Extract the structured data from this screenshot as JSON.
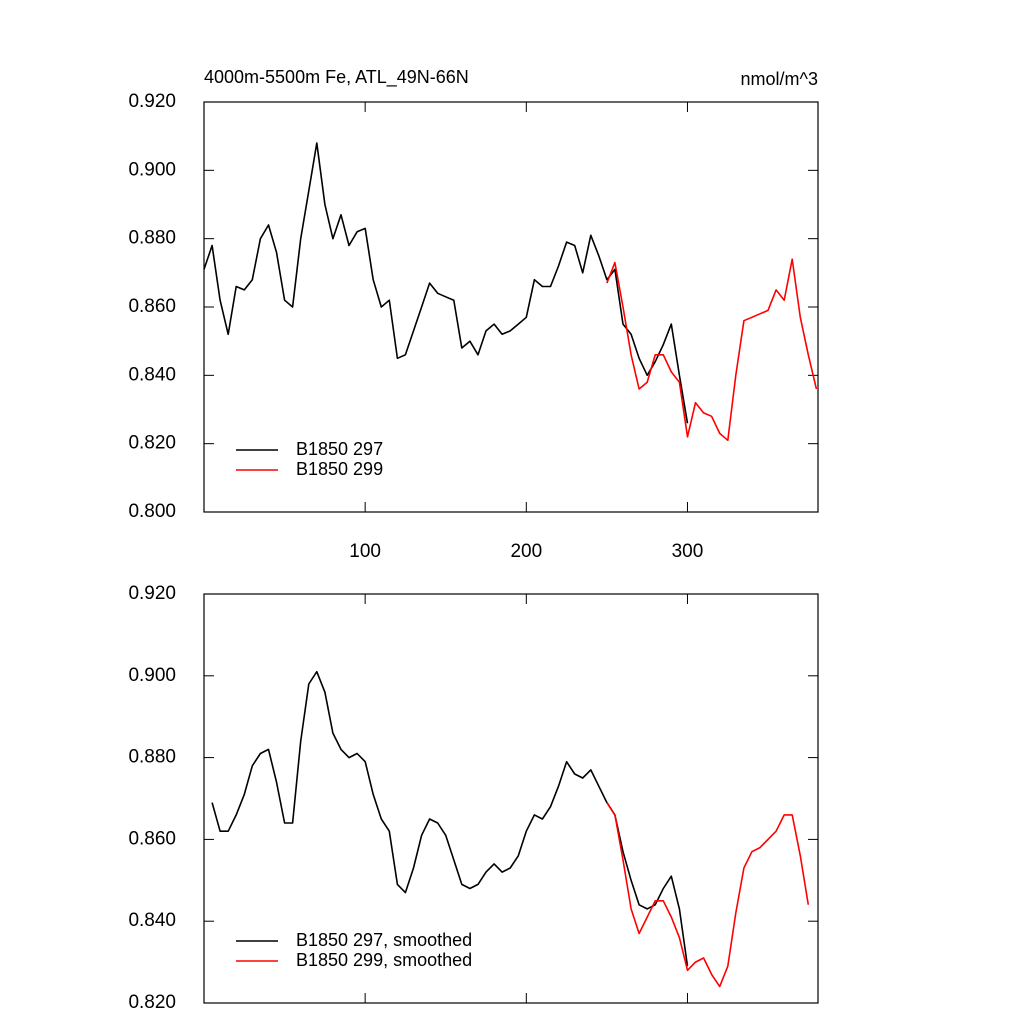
{
  "chart_data": [
    {
      "type": "line",
      "title": "4000m-5500m Fe, ATL_49N-66N",
      "units": "nmol/m^3",
      "x": [
        0,
        5,
        10,
        15,
        20,
        25,
        30,
        35,
        40,
        45,
        50,
        55,
        60,
        65,
        70,
        75,
        80,
        85,
        90,
        95,
        100,
        105,
        110,
        115,
        120,
        125,
        130,
        135,
        140,
        145,
        150,
        155,
        160,
        165,
        170,
        175,
        180,
        185,
        190,
        195,
        200,
        205,
        210,
        215,
        220,
        225,
        230,
        235,
        240,
        245,
        250,
        255,
        260,
        265,
        270,
        275,
        280,
        285,
        290,
        295,
        300,
        305,
        310,
        315,
        320,
        325,
        330,
        335,
        340,
        345,
        350,
        355,
        360,
        365,
        370,
        375,
        380
      ],
      "series": [
        {
          "name": "B1850 297",
          "color": "#000000",
          "values": [
            0.871,
            0.878,
            0.862,
            0.852,
            0.866,
            0.865,
            0.868,
            0.88,
            0.884,
            0.876,
            0.862,
            0.86,
            0.88,
            0.894,
            0.908,
            0.89,
            0.88,
            0.887,
            0.878,
            0.882,
            0.883,
            0.868,
            0.86,
            0.862,
            0.845,
            0.846,
            0.853,
            0.86,
            0.867,
            0.864,
            0.863,
            0.862,
            0.848,
            0.85,
            0.846,
            0.853,
            0.855,
            0.852,
            0.853,
            0.855,
            0.857,
            0.868,
            0.866,
            0.866,
            0.872,
            0.879,
            0.878,
            0.87,
            0.881,
            0.875,
            0.868,
            0.871,
            0.855,
            0.852,
            0.845,
            0.84,
            0.844,
            0.849,
            0.855,
            0.84,
            0.826,
            null,
            null,
            null,
            null,
            null,
            null,
            null,
            null,
            null,
            null,
            null,
            null,
            null,
            null,
            null,
            null
          ]
        },
        {
          "name": "B1850 299",
          "color": "#ff0000",
          "values": [
            null,
            null,
            null,
            null,
            null,
            null,
            null,
            null,
            null,
            null,
            null,
            null,
            null,
            null,
            null,
            null,
            null,
            null,
            null,
            null,
            null,
            null,
            null,
            null,
            null,
            null,
            null,
            null,
            null,
            null,
            null,
            null,
            null,
            null,
            null,
            null,
            null,
            null,
            null,
            null,
            null,
            null,
            null,
            null,
            null,
            null,
            null,
            null,
            null,
            null,
            0.867,
            0.873,
            0.86,
            0.846,
            0.836,
            0.838,
            0.846,
            0.846,
            0.841,
            0.838,
            0.822,
            0.832,
            0.829,
            0.828,
            0.823,
            0.821,
            0.84,
            0.856,
            0.857,
            0.858,
            0.859,
            0.865,
            0.862,
            0.874,
            0.857,
            0.846,
            0.836
          ]
        }
      ],
      "xlim": [
        0,
        381
      ],
      "xticks": [
        100,
        200,
        300
      ],
      "xtick_labels": true,
      "ylim": [
        0.8,
        0.92
      ],
      "yticks": [
        {
          "value": 0.8,
          "label": "0.800"
        },
        {
          "value": 0.82,
          "label": "0.820"
        },
        {
          "value": 0.84,
          "label": "0.840"
        },
        {
          "value": 0.86,
          "label": "0.860"
        },
        {
          "value": 0.88,
          "label": "0.880"
        },
        {
          "value": 0.9,
          "label": "0.900"
        },
        {
          "value": 0.92,
          "label": "0.920"
        }
      ],
      "legend": "lower left"
    },
    {
      "type": "line",
      "x": [
        5,
        10,
        15,
        20,
        25,
        30,
        35,
        40,
        45,
        50,
        55,
        60,
        65,
        70,
        75,
        80,
        85,
        90,
        95,
        100,
        105,
        110,
        115,
        120,
        125,
        130,
        135,
        140,
        145,
        150,
        155,
        160,
        165,
        170,
        175,
        180,
        185,
        190,
        195,
        200,
        205,
        210,
        215,
        220,
        225,
        230,
        235,
        240,
        245,
        250,
        255,
        260,
        265,
        270,
        275,
        280,
        285,
        290,
        295,
        300,
        305,
        310,
        315,
        320,
        325,
        330,
        335,
        340,
        345,
        350,
        355,
        360,
        365,
        370,
        375
      ],
      "series": [
        {
          "name": "B1850 297, smoothed",
          "color": "#000000",
          "values": [
            0.869,
            0.862,
            0.862,
            0.866,
            0.871,
            0.878,
            0.881,
            0.882,
            0.874,
            0.864,
            0.864,
            0.884,
            0.898,
            0.901,
            0.896,
            0.886,
            0.882,
            0.88,
            0.881,
            0.879,
            0.871,
            0.865,
            0.862,
            0.849,
            0.847,
            0.853,
            0.861,
            0.865,
            0.864,
            0.861,
            0.855,
            0.849,
            0.848,
            0.849,
            0.852,
            0.854,
            0.852,
            0.853,
            0.856,
            0.862,
            0.866,
            0.865,
            0.868,
            0.873,
            0.879,
            0.876,
            0.875,
            0.877,
            0.873,
            0.869,
            0.866,
            0.857,
            0.85,
            0.844,
            0.843,
            0.844,
            0.848,
            0.851,
            0.843,
            0.829,
            null,
            null,
            null,
            null,
            null,
            null,
            null,
            null,
            null,
            null,
            null,
            null,
            null,
            null,
            null
          ]
        },
        {
          "name": "B1850 299, smoothed",
          "color": "#ff0000",
          "values": [
            null,
            null,
            null,
            null,
            null,
            null,
            null,
            null,
            null,
            null,
            null,
            null,
            null,
            null,
            null,
            null,
            null,
            null,
            null,
            null,
            null,
            null,
            null,
            null,
            null,
            null,
            null,
            null,
            null,
            null,
            null,
            null,
            null,
            null,
            null,
            null,
            null,
            null,
            null,
            null,
            null,
            null,
            null,
            null,
            null,
            null,
            null,
            null,
            null,
            0.869,
            0.866,
            0.855,
            0.843,
            0.837,
            0.841,
            0.845,
            0.845,
            0.841,
            0.836,
            0.828,
            0.83,
            0.831,
            0.827,
            0.824,
            0.829,
            0.842,
            0.853,
            0.857,
            0.858,
            0.86,
            0.862,
            0.866,
            0.866,
            0.856,
            0.844
          ]
        }
      ],
      "xlim": [
        0,
        381
      ],
      "xticks": [
        100,
        200,
        300
      ],
      "xtick_labels": false,
      "ylim": [
        0.82,
        0.92
      ],
      "yticks": [
        {
          "value": 0.82,
          "label": "0.820"
        },
        {
          "value": 0.84,
          "label": "0.840"
        },
        {
          "value": 0.86,
          "label": "0.860"
        },
        {
          "value": 0.88,
          "label": "0.880"
        },
        {
          "value": 0.9,
          "label": "0.900"
        },
        {
          "value": 0.92,
          "label": "0.920"
        }
      ],
      "legend": "lower left"
    }
  ]
}
